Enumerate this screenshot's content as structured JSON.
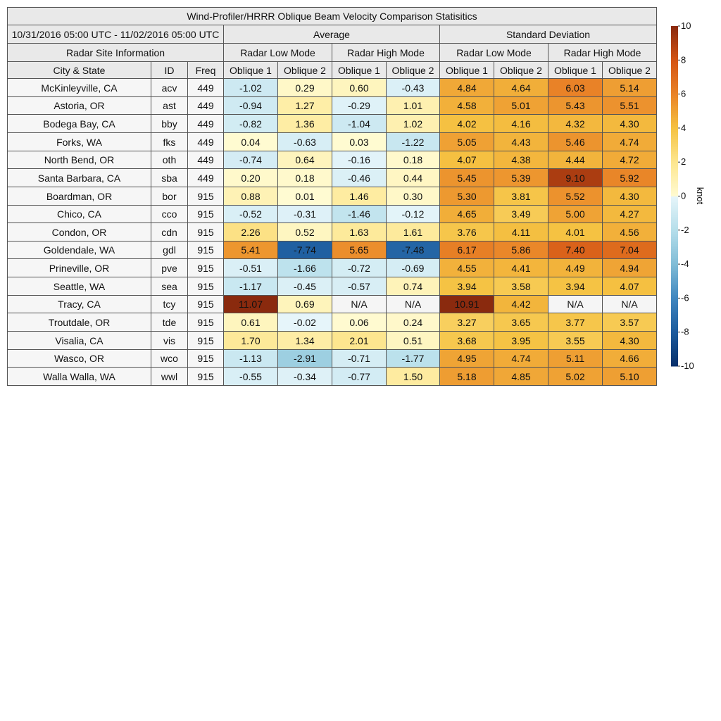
{
  "title": "Wind-Profiler/HRRR Oblique Beam Velocity Comparison Statisitics",
  "date_range": "10/31/2016 05:00 UTC - 11/02/2016 05:00 UTC",
  "site_header": "Radar Site Information",
  "groups": [
    "Average",
    "Standard Deviation"
  ],
  "modes": [
    "Radar Low Mode",
    "Radar High Mode",
    "Radar Low Mode",
    "Radar High Mode"
  ],
  "columns": [
    "City & State",
    "ID",
    "Freq",
    "Oblique 1",
    "Oblique 2",
    "Oblique 1",
    "Oblique 2",
    "Oblique 1",
    "Oblique 2",
    "Oblique 1",
    "Oblique 2"
  ],
  "rows": [
    [
      "McKinleyville, CA",
      "acv",
      "449",
      "-1.02",
      "0.29",
      "0.60",
      "-0.43",
      "4.84",
      "4.64",
      "6.03",
      "5.14"
    ],
    [
      "Astoria, OR",
      "ast",
      "449",
      "-0.94",
      "1.27",
      "-0.29",
      "1.01",
      "4.58",
      "5.01",
      "5.43",
      "5.51"
    ],
    [
      "Bodega Bay, CA",
      "bby",
      "449",
      "-0.82",
      "1.36",
      "-1.04",
      "1.02",
      "4.02",
      "4.16",
      "4.32",
      "4.30"
    ],
    [
      "Forks, WA",
      "fks",
      "449",
      "0.04",
      "-0.63",
      "0.03",
      "-1.22",
      "5.05",
      "4.43",
      "5.46",
      "4.74"
    ],
    [
      "North Bend, OR",
      "oth",
      "449",
      "-0.74",
      "0.64",
      "-0.16",
      "0.18",
      "4.07",
      "4.38",
      "4.44",
      "4.72"
    ],
    [
      "Santa Barbara, CA",
      "sba",
      "449",
      "0.20",
      "0.18",
      "-0.46",
      "0.44",
      "5.45",
      "5.39",
      "9.10",
      "5.92"
    ],
    [
      "Boardman, OR",
      "bor",
      "915",
      "0.88",
      "0.01",
      "1.46",
      "0.30",
      "5.30",
      "3.81",
      "5.52",
      "4.30"
    ],
    [
      "Chico, CA",
      "cco",
      "915",
      "-0.52",
      "-0.31",
      "-1.46",
      "-0.12",
      "4.65",
      "3.49",
      "5.00",
      "4.27"
    ],
    [
      "Condon, OR",
      "cdn",
      "915",
      "2.26",
      "0.52",
      "1.63",
      "1.61",
      "3.76",
      "4.11",
      "4.01",
      "4.56"
    ],
    [
      "Goldendale, WA",
      "gdl",
      "915",
      "5.41",
      "-7.74",
      "5.65",
      "-7.48",
      "6.17",
      "5.86",
      "7.40",
      "7.04"
    ],
    [
      "Prineville, OR",
      "pve",
      "915",
      "-0.51",
      "-1.66",
      "-0.72",
      "-0.69",
      "4.55",
      "4.41",
      "4.49",
      "4.94"
    ],
    [
      "Seattle, WA",
      "sea",
      "915",
      "-1.17",
      "-0.45",
      "-0.57",
      "0.74",
      "3.94",
      "3.58",
      "3.94",
      "4.07"
    ],
    [
      "Tracy, CA",
      "tcy",
      "915",
      "11.07",
      "0.69",
      "N/A",
      "N/A",
      "10.91",
      "4.42",
      "N/A",
      "N/A"
    ],
    [
      "Troutdale, OR",
      "tde",
      "915",
      "0.61",
      "-0.02",
      "0.06",
      "0.24",
      "3.27",
      "3.65",
      "3.77",
      "3.57"
    ],
    [
      "Visalia, CA",
      "vis",
      "915",
      "1.70",
      "1.34",
      "2.01",
      "0.51",
      "3.68",
      "3.95",
      "3.55",
      "4.30"
    ],
    [
      "Wasco, OR",
      "wco",
      "915",
      "-1.13",
      "-2.91",
      "-0.71",
      "-1.77",
      "4.95",
      "4.74",
      "5.11",
      "4.66"
    ],
    [
      "Walla Walla, WA",
      "wwl",
      "915",
      "-0.55",
      "-0.34",
      "-0.77",
      "1.50",
      "5.18",
      "4.85",
      "5.02",
      "5.10"
    ]
  ],
  "colorbar": {
    "label": "knot",
    "lim": [
      -10,
      10
    ],
    "ticks": [
      10,
      8,
      6,
      4,
      2,
      0,
      -2,
      -4,
      -6,
      -8,
      -10
    ],
    "negative_colors": [
      "#08306b",
      "#1b5a9c",
      "#3f86bf",
      "#80bcd6",
      "#b5deea",
      "#e6f5fa"
    ],
    "positive_colors": [
      "#fffbd2",
      "#fde68f",
      "#f5c242",
      "#e98327",
      "#d45414",
      "#8a2a0e"
    ],
    "missing_color": "#f5f5f5"
  }
}
